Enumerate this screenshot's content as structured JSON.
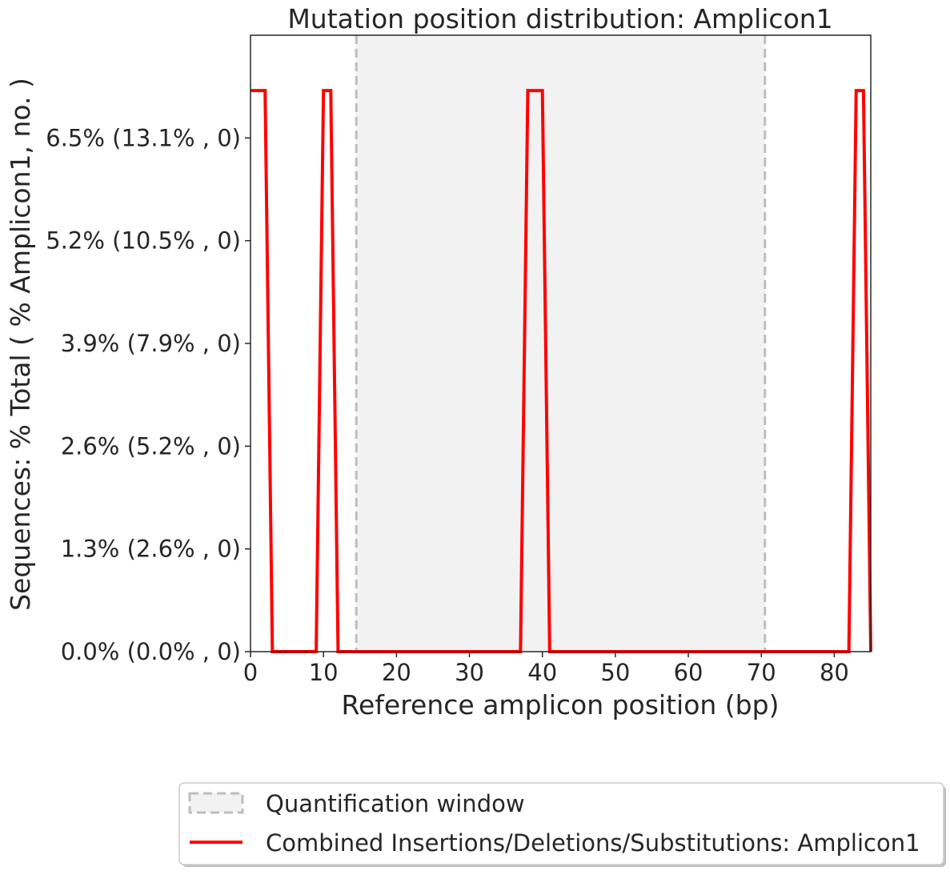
{
  "chart_data": {
    "type": "line",
    "title": "Mutation position distribution: Amplicon1",
    "xlabel": "Reference amplicon position (bp)",
    "ylabel": "Sequences: % Total ( % Amplicon1, no. )",
    "xlim": [
      0,
      85
    ],
    "ylim": [
      0,
      7.8
    ],
    "x_ticks": [
      0,
      10,
      20,
      30,
      40,
      50,
      60,
      70,
      80
    ],
    "x_tick_labels": [
      "0",
      "10",
      "20",
      "30",
      "40",
      "50",
      "60",
      "70",
      "80"
    ],
    "y_ticks": [
      0,
      1.3,
      2.6,
      3.9,
      5.2,
      6.5
    ],
    "y_tick_labels": [
      "0.0% (0.0% , 0)",
      "1.3% (2.6% , 0)",
      "2.6% (5.2% , 0)",
      "3.9% (7.9% , 0)",
      "5.2% (10.5% , 0)",
      "6.5% (13.1% , 0)"
    ],
    "quantification_window": {
      "start": 14.5,
      "end": 70.5
    },
    "series": [
      {
        "name": "Combined Insertions/Deletions/Substitutions: Amplicon1",
        "color": "#ff0000",
        "x": [
          0,
          1,
          2,
          3,
          4,
          5,
          6,
          7,
          8,
          9,
          10,
          11,
          12,
          13,
          14,
          15,
          16,
          17,
          18,
          19,
          20,
          21,
          22,
          23,
          24,
          25,
          26,
          27,
          28,
          29,
          30,
          31,
          32,
          33,
          34,
          35,
          36,
          37,
          38,
          39,
          40,
          41,
          42,
          43,
          44,
          45,
          46,
          47,
          48,
          49,
          50,
          51,
          52,
          53,
          54,
          55,
          56,
          57,
          58,
          59,
          60,
          61,
          62,
          63,
          64,
          65,
          66,
          67,
          68,
          69,
          70,
          71,
          72,
          73,
          74,
          75,
          76,
          77,
          78,
          79,
          80,
          81,
          82,
          83,
          84,
          85
        ],
        "y": [
          7.1,
          7.1,
          7.1,
          0,
          0,
          0,
          0,
          0,
          0,
          0,
          7.1,
          7.1,
          0,
          0,
          0,
          0,
          0,
          0,
          0,
          0,
          0,
          0,
          0,
          0,
          0,
          0,
          0,
          0,
          0,
          0,
          0,
          0,
          0,
          0,
          0,
          0,
          0,
          0,
          7.1,
          7.1,
          7.1,
          0,
          0,
          0,
          0,
          0,
          0,
          0,
          0,
          0,
          0,
          0,
          0,
          0,
          0,
          0,
          0,
          0,
          0,
          0,
          0,
          0,
          0,
          0,
          0,
          0,
          0,
          0,
          0,
          0,
          0,
          0,
          0,
          0,
          0,
          0,
          0,
          0,
          0,
          0,
          0,
          0,
          0,
          7.1,
          7.1,
          0
        ]
      }
    ],
    "legend": {
      "position": "bottom",
      "entries": [
        "Quantification window",
        "Combined Insertions/Deletions/Substitutions: Amplicon1"
      ],
      "window_fill": "#f2f2f2",
      "window_edge": "#bdbdbd"
    }
  }
}
